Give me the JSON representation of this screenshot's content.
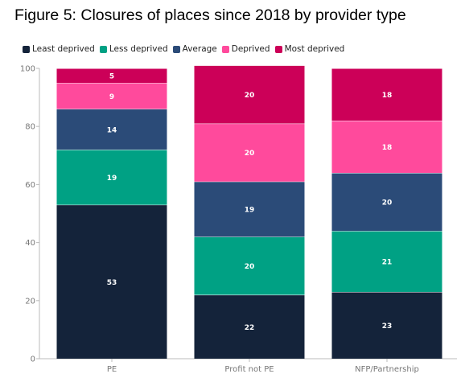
{
  "title": "Figure 5: Closures of places since 2018 by provider type",
  "chart_data": {
    "type": "bar",
    "stacked": true,
    "categories": [
      "PE",
      "Profit not PE",
      "NFP/Partnership"
    ],
    "series": [
      {
        "name": "Least deprived",
        "color": "#14233a",
        "values": [
          53,
          22,
          23
        ]
      },
      {
        "name": "Less deprived",
        "color": "#00a184",
        "values": [
          19,
          20,
          21
        ]
      },
      {
        "name": "Average",
        "color": "#2b4b78",
        "values": [
          14,
          19,
          20
        ]
      },
      {
        "name": "Deprived",
        "color": "#ff4a9c",
        "values": [
          9,
          20,
          18
        ]
      },
      {
        "name": "Most deprived",
        "color": "#cc0058",
        "values": [
          5,
          20,
          18
        ]
      }
    ],
    "ylim": [
      0,
      100
    ],
    "yticks": [
      0,
      20,
      40,
      60,
      80,
      100
    ],
    "grid": false,
    "legend_position": "top-left"
  }
}
